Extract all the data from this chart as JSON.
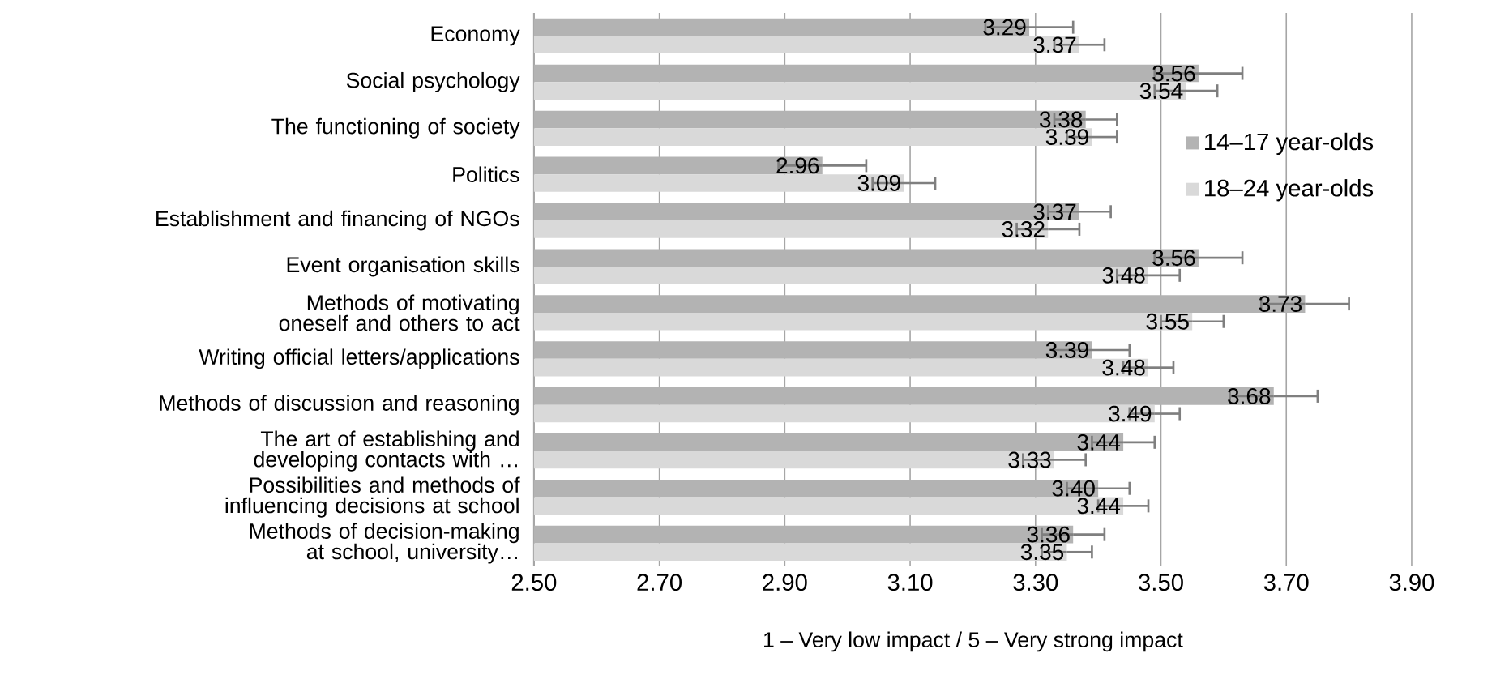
{
  "chart_data": {
    "type": "bar",
    "orientation": "horizontal",
    "categories": [
      "Economy",
      "Social psychology",
      "The functioning of society",
      "Politics",
      "Establishment and financing of NGOs",
      "Event organisation skills",
      "Methods of motivating oneself and others to act",
      "Writing official letters/applications",
      "Methods of discussion and reasoning",
      "The art of establishing and developing contacts with …",
      "Possibilities and methods of influencing decisions at school",
      "Methods of decision-making at school, university…"
    ],
    "series": [
      {
        "name": "14–17 year-olds",
        "color": "#b3b3b3",
        "values": [
          3.29,
          3.56,
          3.38,
          2.96,
          3.37,
          3.56,
          3.73,
          3.39,
          3.68,
          3.44,
          3.4,
          3.36
        ],
        "value_labels": [
          "3.29",
          "3.56",
          "3.38",
          "2.96",
          "3.37",
          "3.56",
          "3.73",
          "3.39",
          "3.68",
          "3.44",
          "3.40",
          "3.36"
        ],
        "errors": [
          0.07,
          0.07,
          0.05,
          0.07,
          0.05,
          0.07,
          0.07,
          0.06,
          0.07,
          0.05,
          0.05,
          0.05
        ]
      },
      {
        "name": "18–24 year-olds",
        "color": "#d9d9d9",
        "values": [
          3.37,
          3.54,
          3.39,
          3.09,
          3.32,
          3.48,
          3.55,
          3.48,
          3.49,
          3.33,
          3.44,
          3.35
        ],
        "value_labels": [
          "3.37",
          "3.54",
          "3.39",
          "3.09",
          "3.32",
          "3.48",
          "3.55",
          "3.48",
          "3.49",
          "3.33",
          "3.44",
          "3.35"
        ],
        "errors": [
          0.04,
          0.05,
          0.04,
          0.05,
          0.05,
          0.05,
          0.05,
          0.04,
          0.04,
          0.05,
          0.04,
          0.04
        ]
      }
    ],
    "xlim": [
      2.5,
      3.9
    ],
    "xticks": [
      {
        "value": 2.5,
        "label": "2.50"
      },
      {
        "value": 2.7,
        "label": "2.70"
      },
      {
        "value": 2.9,
        "label": "2.90"
      },
      {
        "value": 3.1,
        "label": "3.10"
      },
      {
        "value": 3.3,
        "label": "3.30"
      },
      {
        "value": 3.5,
        "label": "3.50"
      },
      {
        "value": 3.7,
        "label": "3.70"
      },
      {
        "value": 3.9,
        "label": "3.90"
      }
    ],
    "xlabel": "1 – Very low impact / 5 – Very strong impact",
    "grid": "x",
    "legend": "right"
  }
}
